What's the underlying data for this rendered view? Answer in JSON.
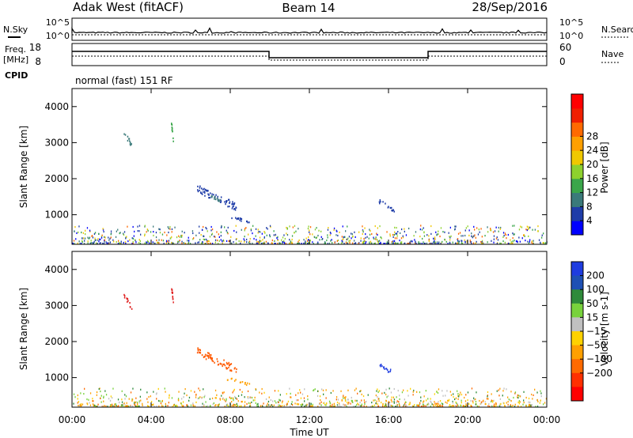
{
  "header": {
    "station": "Adak West (fitACF)",
    "beam": "Beam 14",
    "date": "28/Sep/2016"
  },
  "noise_panel": {
    "left_label": "N.Sky",
    "right_label": "N.Search",
    "left_ticks": [
      "10^5",
      "10^0"
    ],
    "right_ticks": [
      "10^5",
      "10^0"
    ]
  },
  "freq_panel": {
    "left_label_1": "Freq.",
    "left_label_2": "[MHz]",
    "left_ticks": [
      "18",
      "8"
    ],
    "right_ticks": [
      "60",
      "0"
    ],
    "right_label": "Nave",
    "cpid_label": "CPID",
    "cpid_text": "normal (fast) 151 RF"
  },
  "chart_data": [
    {
      "type": "heatmap",
      "name": "power",
      "ylabel": "Slant Range [km]",
      "ylim": [
        180,
        4500
      ],
      "yticks": [
        1000,
        2000,
        3000,
        4000
      ],
      "xlim_hours": [
        0,
        24
      ],
      "colorbar_label": "Power [dB]",
      "colorbar_ticks": [
        "4",
        "8",
        "12",
        "16",
        "20",
        "24",
        "28"
      ],
      "colorbar_colors": [
        "#0000ff",
        "#1e3ca8",
        "#3a7a7a",
        "#3aa64a",
        "#8ed12e",
        "#f0c800",
        "#ffa000",
        "#ff6a00",
        "#f02000",
        "#ff0000"
      ],
      "features": [
        {
          "t0": 2.6,
          "t1": 3.0,
          "r0": 2900,
          "r1": 3300,
          "color": "#3a7a7a"
        },
        {
          "t0": 5.0,
          "t1": 5.1,
          "r0": 3050,
          "r1": 3550,
          "color": "#3aa64a"
        },
        {
          "t0": 6.3,
          "t1": 8.3,
          "r0": 1150,
          "r1": 1750,
          "color": "#1e3ca8"
        },
        {
          "t0": 7.0,
          "t1": 7.6,
          "r0": 1300,
          "r1": 1550,
          "color": "#3a7a7a"
        },
        {
          "t0": 7.8,
          "t1": 9.0,
          "r0": 780,
          "r1": 1000,
          "color": "#1e3ca8"
        },
        {
          "t0": 15.5,
          "t1": 16.3,
          "r0": 1050,
          "r1": 1400,
          "color": "#1e3ca8"
        }
      ]
    },
    {
      "type": "heatmap",
      "name": "velocity",
      "ylabel": "Slant Range [km]",
      "ylim": [
        180,
        4500
      ],
      "yticks": [
        1000,
        2000,
        3000,
        4000
      ],
      "xlim_hours": [
        0,
        24
      ],
      "colorbar_label": "Velocity [m s-1]",
      "colorbar_ticks": [
        "200",
        "100",
        "50",
        "15",
        "−15",
        "−50",
        "−100",
        "−200"
      ],
      "colorbar_colors": [
        "#1e3ce0",
        "#1e50b4",
        "#2e8a3a",
        "#78d23c",
        "#c0c0c0",
        "#ffd200",
        "#ffa000",
        "#ff6a00",
        "#ff3000",
        "#ff0000"
      ],
      "features": [
        {
          "t0": 2.6,
          "t1": 3.0,
          "r0": 2900,
          "r1": 3300,
          "color": "#e02020"
        },
        {
          "t0": 5.0,
          "t1": 5.1,
          "r0": 3050,
          "r1": 3550,
          "color": "#e02020"
        },
        {
          "t0": 6.3,
          "t1": 8.3,
          "r0": 1150,
          "r1": 1750,
          "color": "#ff5a00"
        },
        {
          "t0": 7.8,
          "t1": 9.0,
          "r0": 780,
          "r1": 1000,
          "color": "#ffa000"
        },
        {
          "t0": 15.5,
          "t1": 16.3,
          "r0": 1050,
          "r1": 1400,
          "color": "#1e3ce0"
        }
      ]
    }
  ],
  "x_axis": {
    "ticks": [
      "00:00",
      "04:00",
      "08:00",
      "12:00",
      "16:00",
      "20:00",
      "00:00"
    ],
    "label": "Time UT"
  }
}
